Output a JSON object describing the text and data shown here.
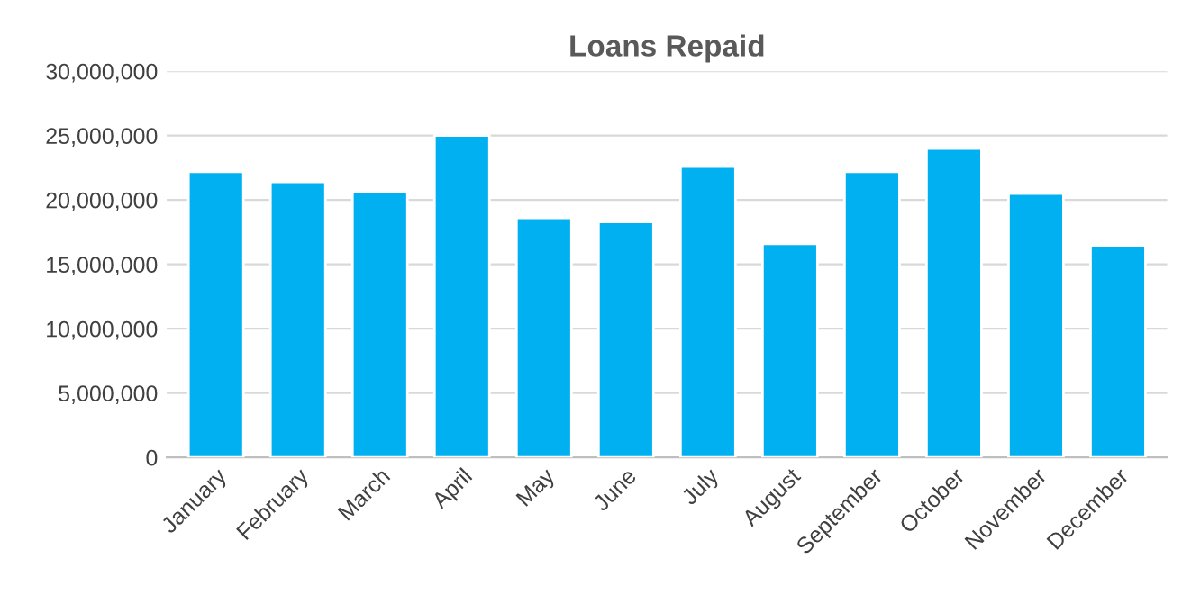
{
  "chart_data": {
    "type": "bar",
    "title": "Loans Repaid",
    "categories": [
      "January",
      "February",
      "March",
      "April",
      "May",
      "June",
      "July",
      "August",
      "September",
      "October",
      "November",
      "December"
    ],
    "values": [
      22200000,
      21400000,
      20600000,
      25000000,
      18600000,
      18300000,
      22600000,
      16600000,
      22200000,
      24000000,
      20500000,
      16400000
    ],
    "color": "#00b0f0",
    "ylim": [
      0,
      30000000
    ],
    "yticks": [
      {
        "value": 0,
        "label": "0"
      },
      {
        "value": 5000000,
        "label": "5,000,000"
      },
      {
        "value": 10000000,
        "label": "10,000,000"
      },
      {
        "value": 15000000,
        "label": "15,000,000"
      },
      {
        "value": 20000000,
        "label": "20,000,000"
      },
      {
        "value": 25000000,
        "label": "25,000,000"
      },
      {
        "value": 30000000,
        "label": "30,000,000"
      }
    ],
    "grid": "y"
  }
}
